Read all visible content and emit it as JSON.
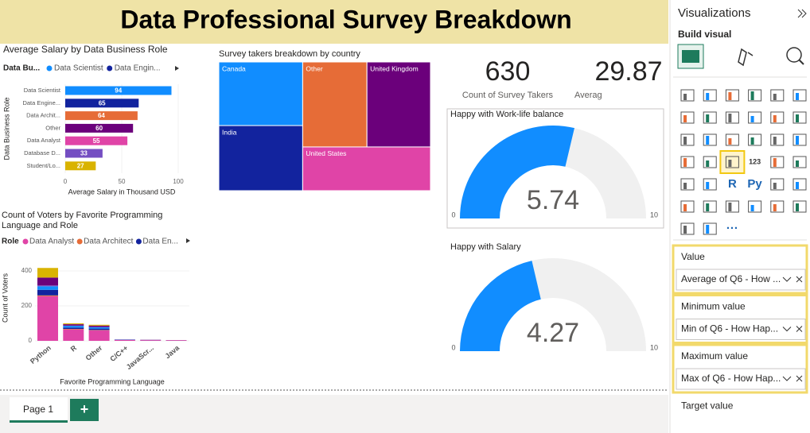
{
  "header": {
    "title": "Data Professional Survey Breakdown"
  },
  "chart_data": [
    {
      "type": "bar",
      "title": "Average Salary by Data Business Role",
      "legend_title": "Data Bu...",
      "legend": [
        "Data Scientist",
        "Data Engin..."
      ],
      "categories": [
        "Data Scientist",
        "Data Engine...",
        "Data Archit...",
        "Other",
        "Data Analyst",
        "Database D...",
        "Student/Lo..."
      ],
      "values": [
        94,
        65,
        64,
        60,
        55,
        33,
        27
      ],
      "colors": [
        "#118dff",
        "#12239e",
        "#e66c37",
        "#6b007b",
        "#e044a7",
        "#744ec2",
        "#d9b300"
      ],
      "xlim": [
        0,
        100
      ],
      "xticks": [
        0,
        50,
        100
      ],
      "xlabel": "Average Salary in Thousand USD",
      "ylabel": "Data Business Role"
    },
    {
      "type": "treemap",
      "title": "Survey takers breakdown by country",
      "categories": [
        "Canada",
        "India",
        "Other",
        "United Kingdom",
        "United States"
      ],
      "values": [
        84,
        86,
        86,
        85,
        88
      ],
      "colors": [
        "#118dff",
        "#12239e",
        "#e66c37",
        "#6b007b",
        "#e044a7"
      ]
    },
    {
      "type": "stacked_bar",
      "title": [
        "Count of Voters by Favorite Programming",
        "Language and Role"
      ],
      "legend_title": "Role",
      "categories": [
        "Python",
        "R",
        "Other",
        "C/C++",
        "JavaScr...",
        "Java"
      ],
      "series": [
        {
          "name": "Data Analyst",
          "color": "#e044a7",
          "values": [
            255,
            65,
            60,
            5,
            4,
            3
          ]
        },
        {
          "name": "Data Architect",
          "color": "#e66c37",
          "values": [
            5,
            3,
            2,
            0,
            0,
            0
          ]
        },
        {
          "name": "Data En...",
          "color": "#12239e",
          "values": [
            32,
            8,
            8,
            1,
            1,
            0
          ]
        },
        {
          "color": "#118dff",
          "values": [
            20,
            10,
            8,
            1,
            0,
            0
          ]
        },
        {
          "color": "#744ec2",
          "values": [
            5,
            1,
            1,
            0,
            0,
            0
          ]
        },
        {
          "color": "#6b007b",
          "values": [
            45,
            8,
            8,
            1,
            1,
            1
          ]
        },
        {
          "color": "#d9b300",
          "values": [
            55,
            5,
            5,
            0,
            0,
            0
          ]
        }
      ],
      "ylim": [
        0,
        450
      ],
      "yticks": [
        0,
        200,
        400
      ],
      "xlabel": "Favorite Programming Language",
      "ylabel": "Count of Voters"
    },
    {
      "type": "gauge",
      "title": "Happy with Work-life balance",
      "value": 5.74,
      "min": 0,
      "max": 10,
      "color": "#118dff"
    },
    {
      "type": "gauge",
      "title": "Happy with Salary",
      "value": 4.27,
      "min": 0,
      "max": 10,
      "color": "#118dff"
    },
    {
      "type": "card",
      "value": 630,
      "label": "Count of Survey Takers"
    },
    {
      "type": "card",
      "value": 29.87,
      "label": "Averag"
    }
  ],
  "pane": {
    "title": "Visualizations",
    "subtitle": "Build visual",
    "icon_texts": [
      "123",
      "R",
      "Py",
      "···"
    ],
    "wells": [
      {
        "label": "Value",
        "field": "Average of Q6 - How ..."
      },
      {
        "label": "Minimum value",
        "field": "Min of Q6 - How Hap..."
      },
      {
        "label": "Maximum value",
        "field": "Max of Q6 - How Hap..."
      },
      {
        "label": "Target value"
      }
    ]
  },
  "tabs": {
    "pages": [
      "Page 1"
    ],
    "add": "+"
  }
}
